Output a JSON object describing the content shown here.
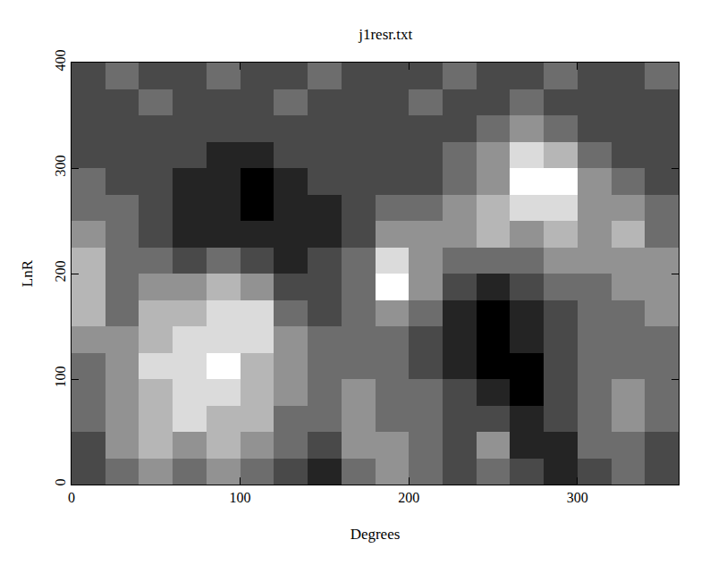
{
  "chart_data": {
    "type": "heatmap",
    "title": "j1resr.txt",
    "x_label": "Degrees",
    "y_label": "LnR",
    "x": [
      10,
      30,
      50,
      70,
      90,
      110,
      130,
      150,
      170,
      190,
      210,
      230,
      250,
      270,
      290,
      310,
      330,
      350
    ],
    "y": [
      12.5,
      37.5,
      62.5,
      87.5,
      112.5,
      137.5,
      162.5,
      187.5,
      212.5,
      237.5,
      262.5,
      287.5,
      312.5,
      337.5,
      362.5,
      387.5
    ],
    "values": [
      [
        3,
        4,
        5,
        4,
        5,
        4,
        3,
        2,
        4,
        5,
        4,
        3,
        4,
        3,
        2,
        3,
        4,
        3
      ],
      [
        3,
        5,
        6,
        5,
        6,
        5,
        4,
        3,
        5,
        5,
        4,
        3,
        5,
        2,
        2,
        4,
        4,
        3
      ],
      [
        4,
        5,
        6,
        7,
        6,
        6,
        4,
        4,
        5,
        4,
        4,
        3,
        3,
        2,
        3,
        4,
        5,
        4
      ],
      [
        4,
        5,
        6,
        7,
        7,
        6,
        5,
        4,
        5,
        4,
        4,
        3,
        2,
        1,
        3,
        4,
        5,
        4
      ],
      [
        4,
        5,
        7,
        7,
        8,
        6,
        5,
        4,
        4,
        4,
        3,
        2,
        1,
        1,
        3,
        4,
        4,
        4
      ],
      [
        5,
        5,
        6,
        7,
        7,
        7,
        5,
        4,
        4,
        4,
        3,
        2,
        1,
        2,
        3,
        4,
        4,
        4
      ],
      [
        6,
        4,
        6,
        6,
        7,
        7,
        4,
        3,
        4,
        5,
        4,
        2,
        1,
        2,
        3,
        4,
        4,
        5
      ],
      [
        6,
        4,
        5,
        5,
        6,
        5,
        3,
        3,
        4,
        8,
        5,
        3,
        2,
        3,
        4,
        4,
        5,
        5
      ],
      [
        6,
        4,
        4,
        3,
        4,
        3,
        2,
        3,
        4,
        7,
        5,
        4,
        4,
        4,
        5,
        5,
        5,
        5
      ],
      [
        5,
        4,
        3,
        2,
        2,
        2,
        2,
        2,
        3,
        5,
        5,
        5,
        6,
        5,
        6,
        5,
        6,
        4
      ],
      [
        4,
        4,
        3,
        2,
        2,
        1,
        2,
        2,
        3,
        4,
        4,
        5,
        6,
        7,
        7,
        5,
        5,
        4
      ],
      [
        4,
        3,
        3,
        2,
        2,
        1,
        2,
        3,
        3,
        3,
        3,
        4,
        5,
        8,
        8,
        5,
        4,
        3
      ],
      [
        3,
        3,
        3,
        3,
        2,
        2,
        3,
        3,
        3,
        3,
        3,
        4,
        5,
        7,
        6,
        4,
        3,
        3
      ],
      [
        3,
        3,
        3,
        3,
        3,
        3,
        3,
        3,
        3,
        3,
        3,
        3,
        4,
        5,
        4,
        3,
        3,
        3
      ],
      [
        3,
        3,
        4,
        3,
        3,
        3,
        4,
        3,
        3,
        3,
        4,
        3,
        3,
        4,
        3,
        3,
        3,
        3
      ],
      [
        3,
        4,
        3,
        3,
        4,
        3,
        3,
        4,
        3,
        3,
        3,
        4,
        3,
        3,
        4,
        3,
        3,
        4
      ]
    ],
    "xlim": [
      0,
      360
    ],
    "ylim": [
      0,
      400
    ],
    "xticks": [
      0,
      100,
      200,
      300
    ],
    "yticks": [
      0,
      100,
      200,
      300,
      400
    ],
    "grid": false
  }
}
